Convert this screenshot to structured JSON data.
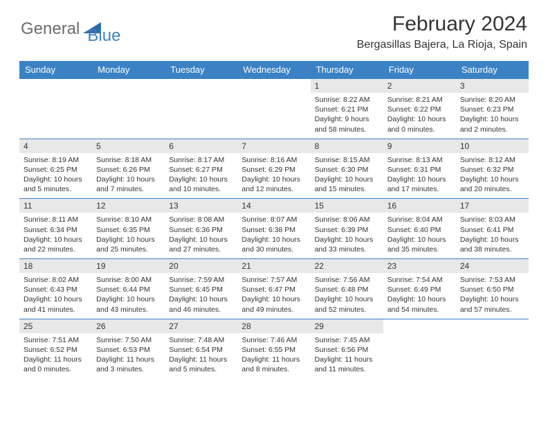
{
  "logo": {
    "part1": "General",
    "part2": "Blue",
    "shape_color": "#2f6aa8"
  },
  "title": "February 2024",
  "location": "Bergasillas Bajera, La Rioja, Spain",
  "colors": {
    "header_bg": "#3b82c4",
    "header_text": "#ffffff",
    "daynum_bg": "#e8e8e8",
    "text": "#333333",
    "rule": "#3b82c4"
  },
  "weekday_labels": [
    "Sunday",
    "Monday",
    "Tuesday",
    "Wednesday",
    "Thursday",
    "Friday",
    "Saturday"
  ],
  "weeks": [
    [
      {
        "empty": true
      },
      {
        "empty": true
      },
      {
        "empty": true
      },
      {
        "empty": true
      },
      {
        "num": "1",
        "sunrise": "Sunrise: 8:22 AM",
        "sunset": "Sunset: 6:21 PM",
        "day1": "Daylight: 9 hours",
        "day2": "and 58 minutes."
      },
      {
        "num": "2",
        "sunrise": "Sunrise: 8:21 AM",
        "sunset": "Sunset: 6:22 PM",
        "day1": "Daylight: 10 hours",
        "day2": "and 0 minutes."
      },
      {
        "num": "3",
        "sunrise": "Sunrise: 8:20 AM",
        "sunset": "Sunset: 6:23 PM",
        "day1": "Daylight: 10 hours",
        "day2": "and 2 minutes."
      }
    ],
    [
      {
        "num": "4",
        "sunrise": "Sunrise: 8:19 AM",
        "sunset": "Sunset: 6:25 PM",
        "day1": "Daylight: 10 hours",
        "day2": "and 5 minutes."
      },
      {
        "num": "5",
        "sunrise": "Sunrise: 8:18 AM",
        "sunset": "Sunset: 6:26 PM",
        "day1": "Daylight: 10 hours",
        "day2": "and 7 minutes."
      },
      {
        "num": "6",
        "sunrise": "Sunrise: 8:17 AM",
        "sunset": "Sunset: 6:27 PM",
        "day1": "Daylight: 10 hours",
        "day2": "and 10 minutes."
      },
      {
        "num": "7",
        "sunrise": "Sunrise: 8:16 AM",
        "sunset": "Sunset: 6:29 PM",
        "day1": "Daylight: 10 hours",
        "day2": "and 12 minutes."
      },
      {
        "num": "8",
        "sunrise": "Sunrise: 8:15 AM",
        "sunset": "Sunset: 6:30 PM",
        "day1": "Daylight: 10 hours",
        "day2": "and 15 minutes."
      },
      {
        "num": "9",
        "sunrise": "Sunrise: 8:13 AM",
        "sunset": "Sunset: 6:31 PM",
        "day1": "Daylight: 10 hours",
        "day2": "and 17 minutes."
      },
      {
        "num": "10",
        "sunrise": "Sunrise: 8:12 AM",
        "sunset": "Sunset: 6:32 PM",
        "day1": "Daylight: 10 hours",
        "day2": "and 20 minutes."
      }
    ],
    [
      {
        "num": "11",
        "sunrise": "Sunrise: 8:11 AM",
        "sunset": "Sunset: 6:34 PM",
        "day1": "Daylight: 10 hours",
        "day2": "and 22 minutes."
      },
      {
        "num": "12",
        "sunrise": "Sunrise: 8:10 AM",
        "sunset": "Sunset: 6:35 PM",
        "day1": "Daylight: 10 hours",
        "day2": "and 25 minutes."
      },
      {
        "num": "13",
        "sunrise": "Sunrise: 8:08 AM",
        "sunset": "Sunset: 6:36 PM",
        "day1": "Daylight: 10 hours",
        "day2": "and 27 minutes."
      },
      {
        "num": "14",
        "sunrise": "Sunrise: 8:07 AM",
        "sunset": "Sunset: 6:38 PM",
        "day1": "Daylight: 10 hours",
        "day2": "and 30 minutes."
      },
      {
        "num": "15",
        "sunrise": "Sunrise: 8:06 AM",
        "sunset": "Sunset: 6:39 PM",
        "day1": "Daylight: 10 hours",
        "day2": "and 33 minutes."
      },
      {
        "num": "16",
        "sunrise": "Sunrise: 8:04 AM",
        "sunset": "Sunset: 6:40 PM",
        "day1": "Daylight: 10 hours",
        "day2": "and 35 minutes."
      },
      {
        "num": "17",
        "sunrise": "Sunrise: 8:03 AM",
        "sunset": "Sunset: 6:41 PM",
        "day1": "Daylight: 10 hours",
        "day2": "and 38 minutes."
      }
    ],
    [
      {
        "num": "18",
        "sunrise": "Sunrise: 8:02 AM",
        "sunset": "Sunset: 6:43 PM",
        "day1": "Daylight: 10 hours",
        "day2": "and 41 minutes."
      },
      {
        "num": "19",
        "sunrise": "Sunrise: 8:00 AM",
        "sunset": "Sunset: 6:44 PM",
        "day1": "Daylight: 10 hours",
        "day2": "and 43 minutes."
      },
      {
        "num": "20",
        "sunrise": "Sunrise: 7:59 AM",
        "sunset": "Sunset: 6:45 PM",
        "day1": "Daylight: 10 hours",
        "day2": "and 46 minutes."
      },
      {
        "num": "21",
        "sunrise": "Sunrise: 7:57 AM",
        "sunset": "Sunset: 6:47 PM",
        "day1": "Daylight: 10 hours",
        "day2": "and 49 minutes."
      },
      {
        "num": "22",
        "sunrise": "Sunrise: 7:56 AM",
        "sunset": "Sunset: 6:48 PM",
        "day1": "Daylight: 10 hours",
        "day2": "and 52 minutes."
      },
      {
        "num": "23",
        "sunrise": "Sunrise: 7:54 AM",
        "sunset": "Sunset: 6:49 PM",
        "day1": "Daylight: 10 hours",
        "day2": "and 54 minutes."
      },
      {
        "num": "24",
        "sunrise": "Sunrise: 7:53 AM",
        "sunset": "Sunset: 6:50 PM",
        "day1": "Daylight: 10 hours",
        "day2": "and 57 minutes."
      }
    ],
    [
      {
        "num": "25",
        "sunrise": "Sunrise: 7:51 AM",
        "sunset": "Sunset: 6:52 PM",
        "day1": "Daylight: 11 hours",
        "day2": "and 0 minutes."
      },
      {
        "num": "26",
        "sunrise": "Sunrise: 7:50 AM",
        "sunset": "Sunset: 6:53 PM",
        "day1": "Daylight: 11 hours",
        "day2": "and 3 minutes."
      },
      {
        "num": "27",
        "sunrise": "Sunrise: 7:48 AM",
        "sunset": "Sunset: 6:54 PM",
        "day1": "Daylight: 11 hours",
        "day2": "and 5 minutes."
      },
      {
        "num": "28",
        "sunrise": "Sunrise: 7:46 AM",
        "sunset": "Sunset: 6:55 PM",
        "day1": "Daylight: 11 hours",
        "day2": "and 8 minutes."
      },
      {
        "num": "29",
        "sunrise": "Sunrise: 7:45 AM",
        "sunset": "Sunset: 6:56 PM",
        "day1": "Daylight: 11 hours",
        "day2": "and 11 minutes."
      },
      {
        "empty": true
      },
      {
        "empty": true
      }
    ]
  ]
}
